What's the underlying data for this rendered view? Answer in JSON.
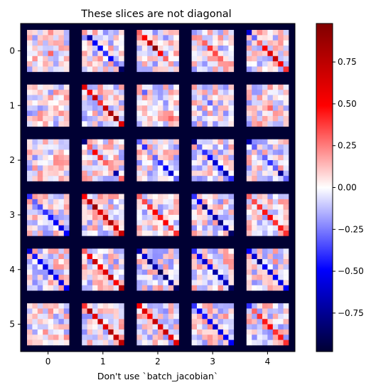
{
  "chart_data": {
    "type": "heatmap",
    "title": "These slices are not diagonal",
    "xlabel": "Don't use `batch_jacobian`",
    "ylabel": "",
    "x_ticks": [
      "0",
      "1",
      "2",
      "3",
      "4"
    ],
    "y_ticks": [
      "0",
      "1",
      "2",
      "3",
      "4",
      "5"
    ],
    "grid": false,
    "colormap": "seismic",
    "background_value": -0.98,
    "value_range": [
      -0.98,
      0.98
    ],
    "colorbar_ticks": [
      {
        "value": 0.75,
        "label": "0.75"
      },
      {
        "value": 0.5,
        "label": "0.50"
      },
      {
        "value": 0.25,
        "label": "0.25"
      },
      {
        "value": 0.0,
        "label": "0.00"
      },
      {
        "value": -0.25,
        "label": "−0.25"
      },
      {
        "value": -0.5,
        "label": "−0.50"
      },
      {
        "value": -0.75,
        "label": "−0.75"
      }
    ],
    "tiles": {
      "rows": 6,
      "cols": 5,
      "matrix_size": 8,
      "diagonal_values": [
        [
          [
            0.1,
            -0.2,
            0.15,
            -0.1,
            0.3,
            -0.15,
            0.1,
            0.05
          ],
          [
            0.2,
            -0.7,
            -0.5,
            -0.5,
            -0.4,
            -0.5,
            -0.3,
            -0.85
          ],
          [
            0.3,
            0.5,
            0.7,
            0.95,
            0.5,
            0.3,
            0.2,
            0.1
          ],
          [
            -0.2,
            0.2,
            0.3,
            0.4,
            0.35,
            0.3,
            0.2,
            0.1
          ],
          [
            -0.6,
            -0.3,
            0.3,
            0.5,
            0.6,
            0.7,
            0.5,
            0.4
          ]
        ],
        [
          [
            0.1,
            0.05,
            -0.1,
            0.1,
            0.05,
            0.1,
            -0.05,
            0.1
          ],
          [
            0.6,
            0.5,
            0.7,
            0.4,
            0.7,
            0.8,
            0.9,
            0.6
          ],
          [
            0.2,
            -0.3,
            0.1,
            -0.1,
            0.05,
            0.2,
            0.3,
            0.1
          ],
          [
            0.2,
            0.1,
            -0.2,
            -0.3,
            -0.2,
            0.1,
            -0.1,
            0.05
          ],
          [
            0.1,
            -0.2,
            0.2,
            0.1,
            0.3,
            0.2,
            -0.1,
            0.1
          ]
        ],
        [
          [
            0.05,
            -0.1,
            0.1,
            0.05,
            -0.05,
            0.1,
            0.05,
            0.1
          ],
          [
            -0.8,
            0.3,
            0.5,
            0.4,
            0.3,
            0.2,
            -0.7,
            0.3
          ],
          [
            -0.3,
            -0.4,
            -0.2,
            -0.3,
            -0.4,
            -0.5,
            -0.6,
            -0.3
          ],
          [
            -0.8,
            -0.3,
            -0.4,
            -0.5,
            -0.6,
            -0.5,
            -0.7,
            -0.4
          ],
          [
            -0.7,
            -0.3,
            -0.2,
            -0.3,
            -0.4,
            -0.3,
            -0.75,
            -0.3
          ]
        ],
        [
          [
            -0.4,
            -0.3,
            -0.35,
            -0.4,
            -0.45,
            -0.5,
            -0.55,
            -0.5
          ],
          [
            0.5,
            0.7,
            0.9,
            0.6,
            0.7,
            0.8,
            0.6,
            0.7
          ],
          [
            0.3,
            0.35,
            0.4,
            0.5,
            0.45,
            0.5,
            0.35,
            0.4
          ],
          [
            -0.4,
            -0.5,
            -0.8,
            -0.6,
            -0.7,
            -0.8,
            -0.6,
            -0.85
          ],
          [
            0.3,
            0.35,
            0.4,
            0.45,
            0.5,
            0.4,
            0.45,
            0.4
          ]
        ],
        [
          [
            -0.6,
            -0.45,
            -0.5,
            -0.55,
            -0.6,
            -0.5,
            -0.55,
            -0.5
          ],
          [
            0.3,
            0.5,
            0.7,
            0.5,
            0.6,
            0.7,
            0.5,
            0.8
          ],
          [
            -0.7,
            -0.6,
            -0.8,
            -0.7,
            -0.9,
            -0.8,
            -0.7,
            -0.85
          ],
          [
            -0.4,
            -0.5,
            -0.6,
            -0.5,
            -0.7,
            -0.6,
            -0.65,
            -0.85
          ],
          [
            -0.5,
            -0.6,
            -0.8,
            -0.5,
            -0.6,
            -0.5,
            -0.55,
            -0.5
          ]
        ],
        [
          [
            0.05,
            0.03,
            -0.05,
            0.05,
            0.02,
            -0.03,
            0.05,
            0.04
          ],
          [
            0.4,
            0.8,
            0.6,
            0.7,
            0.6,
            0.8,
            0.7,
            0.75
          ],
          [
            0.5,
            0.6,
            0.5,
            0.7,
            0.6,
            0.7,
            0.55,
            0.6
          ],
          [
            -0.4,
            -0.5,
            -0.45,
            -0.5,
            -0.6,
            -0.55,
            -0.5,
            -0.5
          ],
          [
            -0.4,
            0.3,
            0.4,
            0.45,
            0.5,
            0.4,
            0.45,
            0.4
          ]
        ]
      ]
    }
  }
}
